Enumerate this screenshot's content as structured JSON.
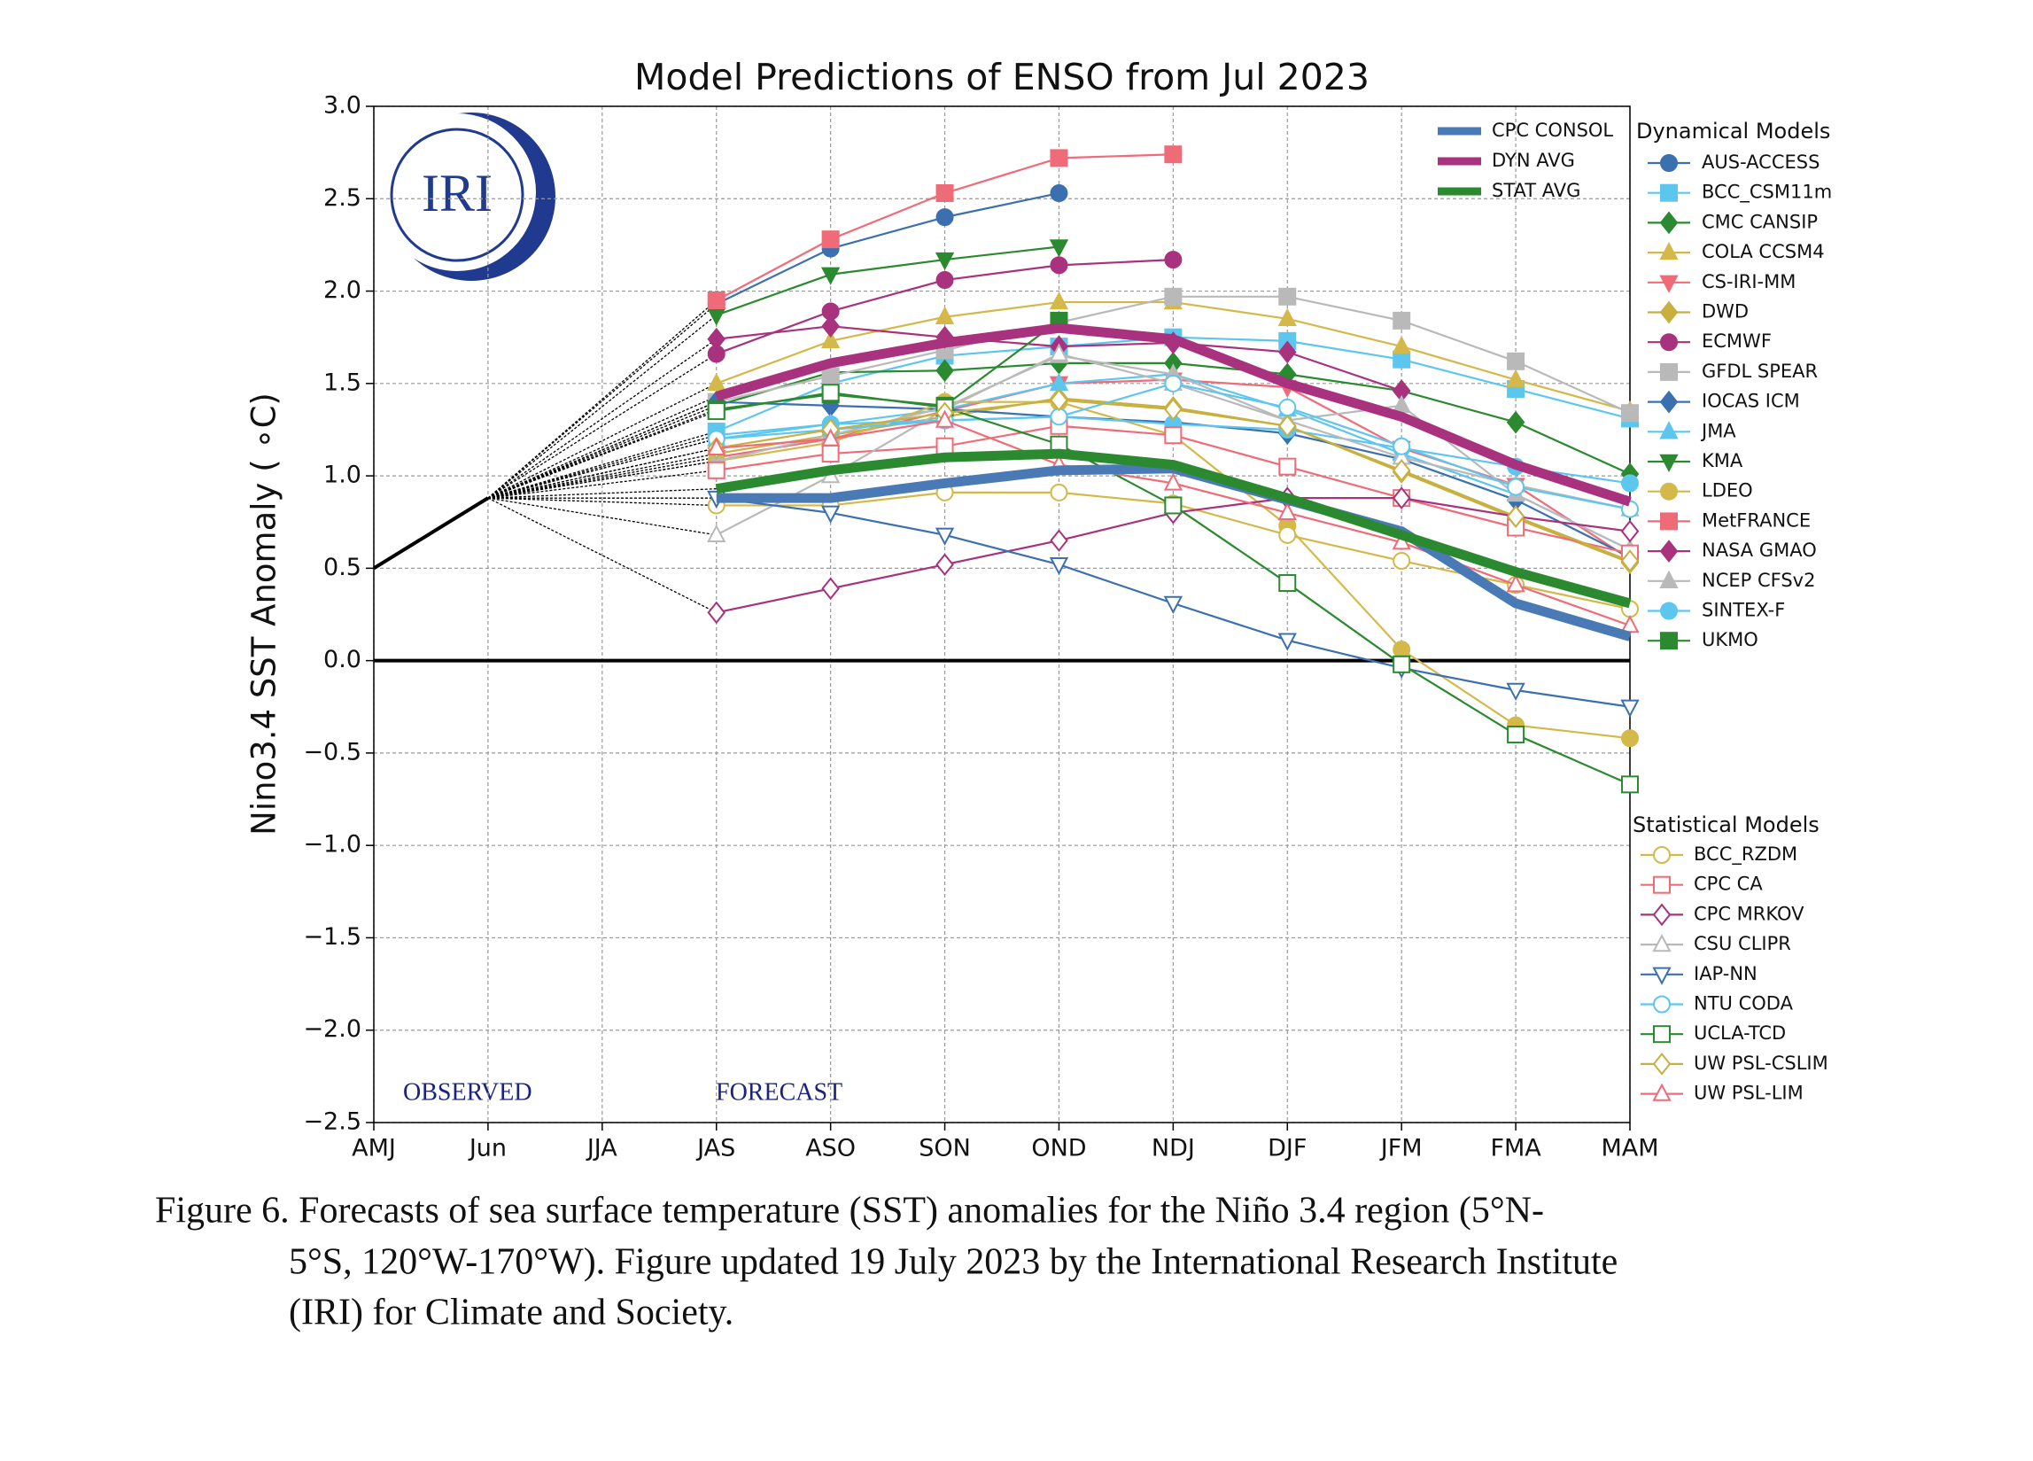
{
  "chart_data": {
    "type": "line",
    "title": "Model Predictions of ENSO from Jul 2023",
    "y_label": "Nino3.4 SST Anomaly ( ∘C)",
    "logo_text": "IRI",
    "annotations": {
      "observed": "OBSERVED",
      "forecast": "FORECAST"
    },
    "legend_headings": {
      "dynamical": "Dynamical Models",
      "statistical": "Statistical Models"
    },
    "categories": [
      "AMJ",
      "Jun",
      "JJA",
      "JAS",
      "ASO",
      "SON",
      "OND",
      "NDJ",
      "DJF",
      "JFM",
      "FMA",
      "MAM"
    ],
    "ylim": [
      -2.5,
      3.0
    ],
    "yticks": [
      {
        "value": -2.5,
        "label": "−2.5"
      },
      {
        "value": -2,
        "label": "−2.0"
      },
      {
        "value": -1.5,
        "label": "−1.5"
      },
      {
        "value": -1,
        "label": "−1.0"
      },
      {
        "value": -0.5,
        "label": "−0.5"
      },
      {
        "value": 0,
        "label": "0.0"
      },
      {
        "value": 0.5,
        "label": "0.5"
      },
      {
        "value": 1,
        "label": "1.0"
      },
      {
        "value": 1.5,
        "label": "1.5"
      },
      {
        "value": 2,
        "label": "2.0"
      },
      {
        "value": 2.5,
        "label": "2.5"
      },
      {
        "value": 3,
        "label": "3.0"
      }
    ],
    "grid": true,
    "observed": {
      "color": "#000000",
      "values": [
        0.5,
        0.88,
        null,
        null,
        null,
        null,
        null,
        null,
        null,
        null,
        null,
        null
      ]
    },
    "series": [
      {
        "name": "CPC CONSOL",
        "group": "average",
        "color": "#4a7ab5",
        "marker": "none",
        "filled": true,
        "values": [
          null,
          null,
          null,
          0.88,
          0.88,
          0.96,
          1.03,
          1.04,
          0.87,
          0.7,
          0.31,
          0.13
        ]
      },
      {
        "name": "DYN AVG",
        "group": "average",
        "color": "#a8327d",
        "marker": "none",
        "filled": true,
        "values": [
          null,
          null,
          null,
          1.43,
          1.61,
          1.72,
          1.8,
          1.74,
          1.5,
          1.32,
          1.06,
          0.86
        ]
      },
      {
        "name": "STAT AVG",
        "group": "average",
        "color": "#2b8a2f",
        "marker": "none",
        "filled": true,
        "values": [
          null,
          null,
          null,
          0.93,
          1.03,
          1.1,
          1.12,
          1.06,
          0.88,
          0.68,
          0.48,
          0.31
        ]
      },
      {
        "name": "AUS-ACCESS",
        "group": "dynamical",
        "color": "#3b70b0",
        "marker": "o",
        "filled": true,
        "values": [
          null,
          null,
          null,
          1.93,
          2.23,
          2.4,
          2.53,
          null,
          null,
          null,
          null,
          null
        ]
      },
      {
        "name": "BCC_CSM11m",
        "group": "dynamical",
        "color": "#5cc6ef",
        "marker": "s",
        "filled": true,
        "values": [
          null,
          null,
          null,
          1.24,
          1.5,
          1.65,
          1.7,
          1.75,
          1.73,
          1.63,
          1.47,
          1.31
        ]
      },
      {
        "name": "CMC CANSIP",
        "group": "dynamical",
        "color": "#2b8a2f",
        "marker": "D",
        "filled": true,
        "values": [
          null,
          null,
          null,
          1.38,
          1.56,
          1.57,
          1.61,
          1.61,
          1.55,
          1.46,
          1.29,
          1.01
        ]
      },
      {
        "name": "COLA CCSM4",
        "group": "dynamical",
        "color": "#d4b84a",
        "marker": "^",
        "filled": true,
        "values": [
          null,
          null,
          null,
          1.5,
          1.73,
          1.86,
          1.94,
          1.94,
          1.85,
          1.7,
          1.52,
          1.35
        ]
      },
      {
        "name": "CS-IRI-MM",
        "group": "dynamical",
        "color": "#ef6b78",
        "marker": "v",
        "filled": true,
        "values": [
          null,
          null,
          null,
          1.1,
          1.2,
          1.35,
          1.5,
          1.52,
          1.48,
          1.15,
          0.95,
          0.55
        ]
      },
      {
        "name": "DWD",
        "group": "dynamical",
        "color": "#c8b040",
        "marker": "D",
        "filled": true,
        "values": [
          null,
          null,
          null,
          1.12,
          1.22,
          1.32,
          1.42,
          1.37,
          1.27,
          1.02,
          0.77,
          0.53
        ]
      },
      {
        "name": "ECMWF",
        "group": "dynamical",
        "color": "#a8327d",
        "marker": "o",
        "filled": true,
        "values": [
          null,
          null,
          null,
          1.66,
          1.89,
          2.06,
          2.14,
          2.17,
          null,
          null,
          null,
          null
        ]
      },
      {
        "name": "GFDL SPEAR",
        "group": "dynamical",
        "color": "#b9b9b9",
        "marker": "s",
        "filled": true,
        "values": [
          null,
          null,
          null,
          1.4,
          1.54,
          1.68,
          1.83,
          1.97,
          1.97,
          1.84,
          1.62,
          1.34
        ]
      },
      {
        "name": "IOCAS ICM",
        "group": "dynamical",
        "color": "#3b70b0",
        "marker": "D",
        "filled": true,
        "values": [
          null,
          null,
          null,
          1.4,
          1.38,
          1.36,
          1.32,
          1.29,
          1.23,
          1.09,
          0.87,
          0.56
        ]
      },
      {
        "name": "JMA",
        "group": "dynamical",
        "color": "#5cc6ef",
        "marker": "^",
        "filled": true,
        "values": [
          null,
          null,
          null,
          1.2,
          1.28,
          1.36,
          1.5,
          1.55,
          1.36,
          1.12,
          0.9,
          0.6
        ]
      },
      {
        "name": "KMA",
        "group": "dynamical",
        "color": "#2b8a2f",
        "marker": "v",
        "filled": true,
        "values": [
          null,
          null,
          null,
          1.87,
          2.09,
          2.17,
          2.24,
          null,
          null,
          null,
          null,
          null
        ]
      },
      {
        "name": "LDEO",
        "group": "dynamical",
        "color": "#d4b84a",
        "marker": "o",
        "filled": true,
        "values": [
          null,
          null,
          null,
          1.08,
          1.18,
          1.4,
          1.4,
          1.22,
          0.73,
          0.06,
          -0.35,
          -0.42
        ]
      },
      {
        "name": "MetFRANCE",
        "group": "dynamical",
        "color": "#ef6b78",
        "marker": "s",
        "filled": true,
        "values": [
          null,
          null,
          null,
          1.95,
          2.28,
          2.53,
          2.72,
          2.74,
          null,
          null,
          null,
          null
        ]
      },
      {
        "name": "NASA GMAO",
        "group": "dynamical",
        "color": "#a8327d",
        "marker": "D",
        "filled": true,
        "values": [
          null,
          null,
          null,
          1.74,
          1.81,
          1.75,
          1.7,
          1.72,
          1.67,
          1.46,
          null,
          null
        ]
      },
      {
        "name": "NCEP CFSv2",
        "group": "dynamical",
        "color": "#b9b9b9",
        "marker": "^",
        "filled": true,
        "values": [
          null,
          null,
          null,
          1.08,
          1.22,
          1.37,
          1.65,
          1.55,
          1.3,
          1.38,
          0.9,
          0.6
        ]
      },
      {
        "name": "SINTEX-F",
        "group": "dynamical",
        "color": "#5cc6ef",
        "marker": "o",
        "filled": true,
        "values": [
          null,
          null,
          null,
          1.22,
          1.28,
          1.3,
          1.32,
          1.28,
          1.25,
          1.15,
          1.05,
          0.96
        ]
      },
      {
        "name": "UKMO",
        "group": "dynamical",
        "color": "#2b8a2f",
        "marker": "s",
        "filled": true,
        "values": [
          null,
          null,
          null,
          1.36,
          1.44,
          1.38,
          1.84,
          null,
          null,
          null,
          null,
          null
        ]
      },
      {
        "name": "BCC_RZDM",
        "group": "statistical",
        "color": "#d4b84a",
        "marker": "o",
        "filled": false,
        "values": [
          null,
          null,
          null,
          0.84,
          0.84,
          0.91,
          0.91,
          0.85,
          0.68,
          0.54,
          0.41,
          0.28
        ]
      },
      {
        "name": "CPC CA",
        "group": "statistical",
        "color": "#ef6b78",
        "marker": "s",
        "filled": false,
        "values": [
          null,
          null,
          null,
          1.03,
          1.12,
          1.16,
          1.27,
          1.22,
          1.05,
          0.88,
          0.72,
          0.58
        ]
      },
      {
        "name": "CPC MRKOV",
        "group": "statistical",
        "color": "#a8327d",
        "marker": "D",
        "filled": false,
        "values": [
          null,
          null,
          null,
          0.26,
          0.39,
          0.52,
          0.65,
          0.8,
          0.88,
          0.88,
          0.78,
          0.7
        ]
      },
      {
        "name": "CSU CLIPR",
        "group": "statistical",
        "color": "#b9b9b9",
        "marker": "^",
        "filled": false,
        "values": [
          null,
          null,
          null,
          0.68,
          1.0,
          1.36,
          1.66,
          1.5,
          1.3,
          1.1,
          0.95,
          0.82
        ]
      },
      {
        "name": "IAP-NN",
        "group": "statistical",
        "color": "#3b70b0",
        "marker": "v",
        "filled": false,
        "values": [
          null,
          null,
          null,
          0.88,
          0.8,
          0.68,
          0.52,
          0.31,
          0.11,
          -0.04,
          -0.16,
          -0.25
        ]
      },
      {
        "name": "NTU CODA",
        "group": "statistical",
        "color": "#5cc6ef",
        "marker": "o",
        "filled": false,
        "values": [
          null,
          null,
          null,
          1.2,
          1.25,
          1.3,
          1.32,
          1.5,
          1.37,
          1.16,
          0.94,
          0.82
        ]
      },
      {
        "name": "UCLA-TCD",
        "group": "statistical",
        "color": "#2b8a2f",
        "marker": "s",
        "filled": false,
        "values": [
          null,
          null,
          null,
          1.35,
          1.45,
          1.37,
          1.17,
          0.84,
          0.42,
          -0.02,
          -0.4,
          -0.67
        ]
      },
      {
        "name": "UW PSL-CSLIM",
        "group": "statistical",
        "color": "#c8b040",
        "marker": "D",
        "filled": false,
        "values": [
          null,
          null,
          null,
          1.15,
          1.25,
          1.34,
          1.41,
          1.36,
          1.27,
          1.03,
          0.78,
          0.54
        ]
      },
      {
        "name": "UW PSL-LIM",
        "group": "statistical",
        "color": "#ef6b78",
        "marker": "^",
        "filled": false,
        "values": [
          null,
          null,
          null,
          1.15,
          1.2,
          1.3,
          1.06,
          0.96,
          0.8,
          0.64,
          0.41,
          0.19
        ]
      }
    ]
  },
  "caption": {
    "lines": [
      "Figure 6. Forecasts of sea surface temperature (SST) anomalies for the Niño 3.4 region (5°N-",
      "5°S, 120°W-170°W). Figure updated 19 July 2023 by the International Research Institute",
      "(IRI) for Climate and Society."
    ]
  }
}
